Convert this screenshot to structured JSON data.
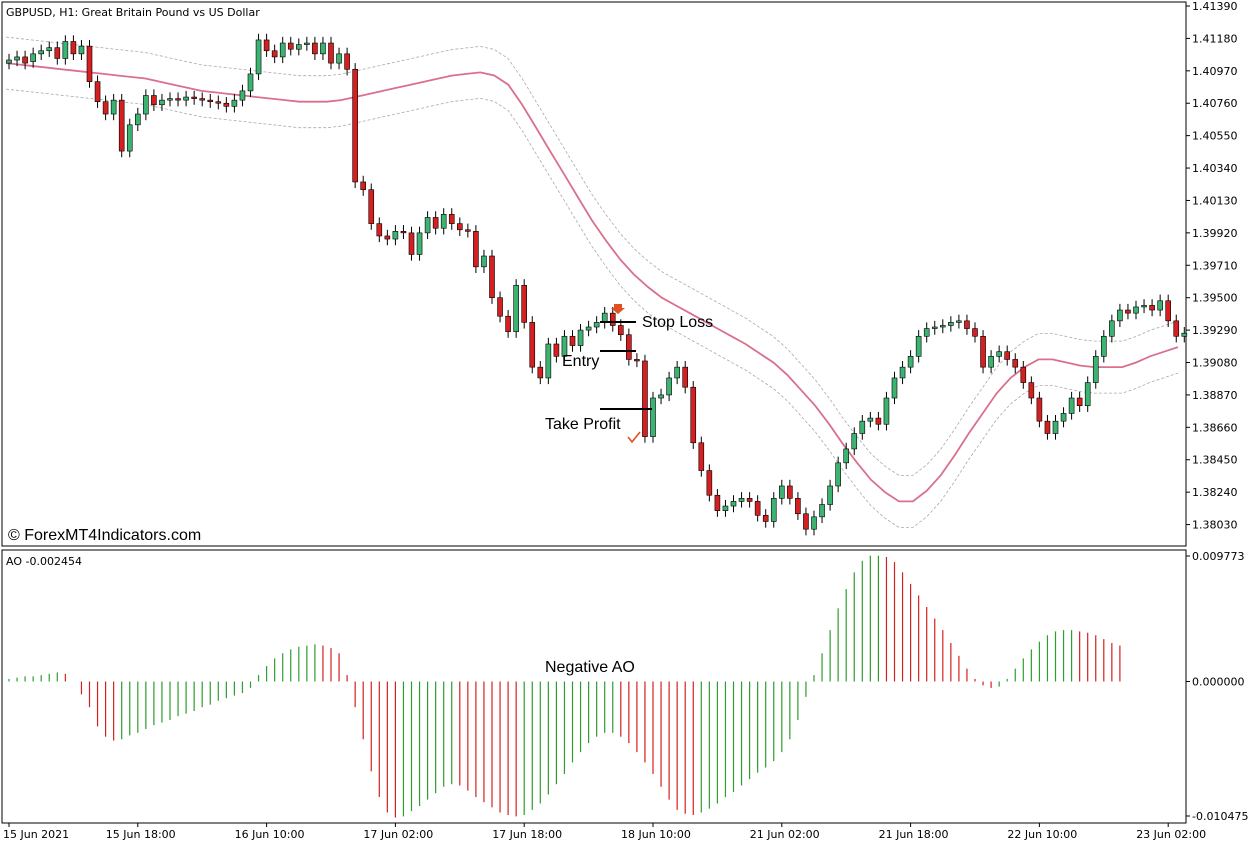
{
  "window": {
    "symbol_title": "GBPUSD, H1:  Great Britain Pound vs US Dollar",
    "watermark": "© ForexMT4Indicators.com"
  },
  "colors": {
    "bull": "#3cb371",
    "bear": "#d42020",
    "ma": "#d9708c",
    "envelope": "#aaaaaa",
    "ao_up": "#2e9e2e",
    "ao_down": "#d42020",
    "frame": "#000000"
  },
  "chart_data": [
    {
      "type": "candlestick",
      "title": "GBPUSD, H1:  Great Britain Pound vs US Dollar",
      "ylim": [
        1.3793,
        1.4139
      ],
      "y_ticks": [
        "1.41390",
        "1.41180",
        "1.40970",
        "1.40760",
        "1.40550",
        "1.40340",
        "1.40130",
        "1.39920",
        "1.39710",
        "1.39500",
        "1.39290",
        "1.39080",
        "1.38870",
        "1.38660",
        "1.38450",
        "1.38240",
        "1.38030"
      ],
      "x_ticks": [
        "15 Jun 2021",
        "15 Jun 18:00",
        "16 Jun 10:00",
        "17 Jun 02:00",
        "17 Jun 18:00",
        "18 Jun 10:00",
        "21 Jun 02:00",
        "21 Jun 18:00",
        "22 Jun 10:00",
        "23 Jun 02:00"
      ],
      "x_tick_bar_index": [
        0,
        16,
        32,
        48,
        64,
        80,
        96,
        112,
        128,
        144
      ],
      "ohlc_close": [
        1.4104,
        1.4106,
        1.4102,
        1.4108,
        1.411,
        1.4112,
        1.4105,
        1.4116,
        1.4108,
        1.4113,
        1.409,
        1.4077,
        1.4069,
        1.4078,
        1.4045,
        1.4062,
        1.4069,
        1.4081,
        1.4075,
        1.4078,
        1.4079,
        1.4078,
        1.408,
        1.4079,
        1.4078,
        1.4077,
        1.4076,
        1.4074,
        1.4078,
        1.4084,
        1.4095,
        1.4117,
        1.411,
        1.4106,
        1.4115,
        1.4111,
        1.4114,
        1.4115,
        1.4108,
        1.4115,
        1.4102,
        1.4108,
        1.4098,
        1.4025,
        1.402,
        1.3998,
        1.399,
        1.3988,
        1.3993,
        1.3992,
        1.3978,
        1.3992,
        1.4002,
        1.3995,
        1.4004,
        1.3998,
        1.3994,
        1.3993,
        1.397,
        1.3977,
        1.395,
        1.3938,
        1.3928,
        1.3958,
        1.3934,
        1.3905,
        1.3898,
        1.392,
        1.3912,
        1.3925,
        1.3919,
        1.3929,
        1.3931,
        1.3934,
        1.394,
        1.3932,
        1.3926,
        1.391,
        1.3909,
        1.386,
        1.3885,
        1.3887,
        1.3898,
        1.3905,
        1.3892,
        1.3856,
        1.3838,
        1.3822,
        1.3812,
        1.3815,
        1.3818,
        1.382,
        1.3818,
        1.3809,
        1.3805,
        1.382,
        1.3828,
        1.382,
        1.381,
        1.38,
        1.3808,
        1.3816,
        1.3828,
        1.3843,
        1.3852,
        1.3862,
        1.387,
        1.3872,
        1.3868,
        1.3885,
        1.3898,
        1.3905,
        1.3912,
        1.3925,
        1.393,
        1.3931,
        1.3932,
        1.3934,
        1.3935,
        1.393,
        1.3925,
        1.3905,
        1.3912,
        1.3915,
        1.391,
        1.3905,
        1.3895,
        1.3885,
        1.387,
        1.3862,
        1.387,
        1.3875,
        1.3885,
        1.388,
        1.3895,
        1.3912,
        1.3925,
        1.3935,
        1.3942,
        1.394,
        1.3944,
        1.3945,
        1.3942,
        1.3948,
        1.3935,
        1.3925,
        1.3927
      ],
      "ohlc_open": [
        1.4102,
        1.4104,
        1.4106,
        1.4103,
        1.4108,
        1.411,
        1.4112,
        1.4105,
        1.4116,
        1.4108,
        1.4113,
        1.409,
        1.4077,
        1.4069,
        1.4078,
        1.4045,
        1.4062,
        1.4069,
        1.4081,
        1.4075,
        1.4078,
        1.4079,
        1.4078,
        1.408,
        1.4079,
        1.4078,
        1.4077,
        1.4076,
        1.4074,
        1.4078,
        1.4084,
        1.4095,
        1.4117,
        1.411,
        1.4106,
        1.4115,
        1.4111,
        1.4114,
        1.4115,
        1.4108,
        1.4115,
        1.4102,
        1.4108,
        1.4098,
        1.4025,
        1.402,
        1.3998,
        1.399,
        1.3988,
        1.3993,
        1.3992,
        1.3978,
        1.3992,
        1.4002,
        1.3995,
        1.4004,
        1.3998,
        1.3994,
        1.3993,
        1.397,
        1.3977,
        1.395,
        1.3938,
        1.3928,
        1.3958,
        1.3934,
        1.3905,
        1.3898,
        1.392,
        1.3912,
        1.3925,
        1.3919,
        1.3929,
        1.3931,
        1.3934,
        1.394,
        1.3932,
        1.3926,
        1.391,
        1.3909,
        1.386,
        1.3885,
        1.3887,
        1.3898,
        1.3905,
        1.3892,
        1.3856,
        1.3838,
        1.3822,
        1.3812,
        1.3815,
        1.3818,
        1.382,
        1.3818,
        1.3809,
        1.3805,
        1.382,
        1.3828,
        1.382,
        1.381,
        1.38,
        1.3808,
        1.3816,
        1.3828,
        1.3843,
        1.3852,
        1.3862,
        1.387,
        1.3872,
        1.3868,
        1.3885,
        1.3898,
        1.3905,
        1.3912,
        1.3925,
        1.393,
        1.3931,
        1.3932,
        1.3934,
        1.3935,
        1.393,
        1.3925,
        1.3905,
        1.3912,
        1.3915,
        1.391,
        1.3905,
        1.3895,
        1.3885,
        1.387,
        1.3862,
        1.387,
        1.3875,
        1.3885,
        1.388,
        1.3895,
        1.3912,
        1.3925,
        1.3935,
        1.3942,
        1.394,
        1.3944,
        1.3945,
        1.3942,
        1.3948,
        1.3935,
        1.3925
      ],
      "ma_line": [
        1.4102,
        1.4101,
        1.41,
        1.4099,
        1.4098,
        1.4097,
        1.4096,
        1.4095,
        1.4094,
        1.4093,
        1.4092,
        1.409,
        1.4088,
        1.4086,
        1.4084,
        1.4083,
        1.4082,
        1.4081,
        1.408,
        1.4079,
        1.4078,
        1.4077,
        1.4077,
        1.4077,
        1.4078,
        1.408,
        1.4082,
        1.4084,
        1.4086,
        1.4088,
        1.409,
        1.4092,
        1.4094,
        1.4095,
        1.4096,
        1.4094,
        1.4088,
        1.4075,
        1.406,
        1.4045,
        1.403,
        1.4015,
        1.4,
        1.3987,
        1.3975,
        1.3965,
        1.3957,
        1.395,
        1.3945,
        1.394,
        1.3935,
        1.393,
        1.3925,
        1.392,
        1.3914,
        1.3908,
        1.39,
        1.389,
        1.388,
        1.3868,
        1.3855,
        1.3843,
        1.3832,
        1.3824,
        1.3818,
        1.3818,
        1.3825,
        1.3835,
        1.3848,
        1.3862,
        1.3875,
        1.3888,
        1.3898,
        1.3905,
        1.391,
        1.391,
        1.3908,
        1.3906,
        1.3905,
        1.3905,
        1.3905,
        1.3908,
        1.3912,
        1.3915,
        1.3918
      ],
      "ao_values": [
        0.0002,
        0.0003,
        0.0004,
        0.0004,
        0.0005,
        0.0006,
        0.0007,
        0.0006,
        0.0,
        -0.001,
        -0.002,
        -0.0035,
        -0.0043,
        -0.0046,
        -0.0045,
        -0.0042,
        -0.004,
        -0.0037,
        -0.0034,
        -0.0032,
        -0.003,
        -0.0027,
        -0.0025,
        -0.0023,
        -0.002,
        -0.0018,
        -0.0015,
        -0.0013,
        -0.0011,
        -0.0009,
        -0.0005,
        0.0005,
        0.0012,
        0.0018,
        0.0022,
        0.0025,
        0.0027,
        0.0028,
        0.0029,
        0.0028,
        0.0026,
        0.0022,
        0.0005,
        -0.002,
        -0.0045,
        -0.007,
        -0.009,
        -0.0102,
        -0.0106,
        -0.0105,
        -0.0101,
        -0.0097,
        -0.0092,
        -0.0087,
        -0.0082,
        -0.008,
        -0.0081,
        -0.0085,
        -0.009,
        -0.0094,
        -0.0098,
        -0.0102,
        -0.0104,
        -0.0105,
        -0.0104,
        -0.01,
        -0.0095,
        -0.0088,
        -0.008,
        -0.0072,
        -0.0063,
        -0.0055,
        -0.0048,
        -0.0043,
        -0.004,
        -0.004,
        -0.0043,
        -0.0048,
        -0.0055,
        -0.0063,
        -0.0072,
        -0.0082,
        -0.0092,
        -0.01,
        -0.0103,
        -0.0104,
        -0.0102,
        -0.0099,
        -0.0095,
        -0.009,
        -0.0086,
        -0.0081,
        -0.0076,
        -0.0071,
        -0.0067,
        -0.0062,
        -0.0055,
        -0.0045,
        -0.003,
        -0.0012,
        0.0005,
        0.0022,
        0.004,
        0.0057,
        0.0072,
        0.0085,
        0.0094,
        0.0098,
        0.0098,
        0.0097,
        0.0093,
        0.0085,
        0.0076,
        0.0067,
        0.0058,
        0.0049,
        0.004,
        0.003,
        0.002,
        0.001,
        0.0002,
        -0.0003,
        -0.0005,
        -0.0004,
        0.0002,
        0.001,
        0.0018,
        0.0025,
        0.0031,
        0.0036,
        0.0039,
        0.004,
        0.004,
        0.0039,
        0.0038,
        0.0036,
        0.0033,
        0.003,
        0.0028
      ],
      "annotations": [
        {
          "text": "Stop Loss",
          "price": 1.3931,
          "bar": 93
        },
        {
          "text": "Entry",
          "price": 1.3911,
          "bar": 93
        },
        {
          "text": "Take Profit",
          "price": 1.3872,
          "bar": 93
        }
      ]
    },
    {
      "type": "bar",
      "title": "AO -0.002454",
      "ylim": [
        -0.010475,
        0.009773
      ],
      "y_ticks": [
        "0.009773",
        "0.000000",
        "-0.010475"
      ],
      "label": "Negative AO"
    }
  ]
}
